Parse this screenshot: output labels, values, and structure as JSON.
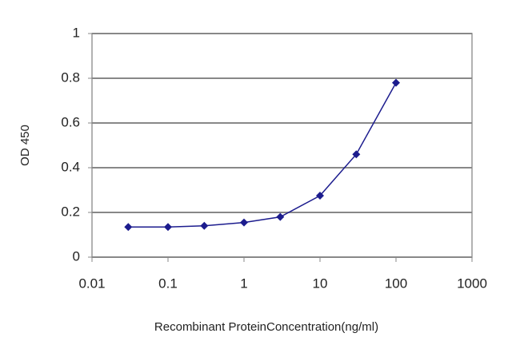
{
  "chart_data": {
    "type": "line",
    "x_label": "Recombinant ProteinConcentration(ng/ml)",
    "y_label": "OD 450",
    "x": [
      0.03,
      0.1,
      0.3,
      1,
      3,
      10,
      30,
      100
    ],
    "values": [
      0.135,
      0.135,
      0.14,
      0.155,
      0.18,
      0.275,
      0.46,
      0.78
    ],
    "color": "#1c1c8e",
    "xscale": "log",
    "xlim": [
      0.01,
      1000
    ],
    "xticks": [
      0.01,
      0.1,
      1,
      10,
      100,
      1000
    ],
    "ylim": [
      0,
      1
    ],
    "yticks": [
      0,
      0.2,
      0.4,
      0.6,
      0.8,
      1
    ],
    "grid": true
  }
}
